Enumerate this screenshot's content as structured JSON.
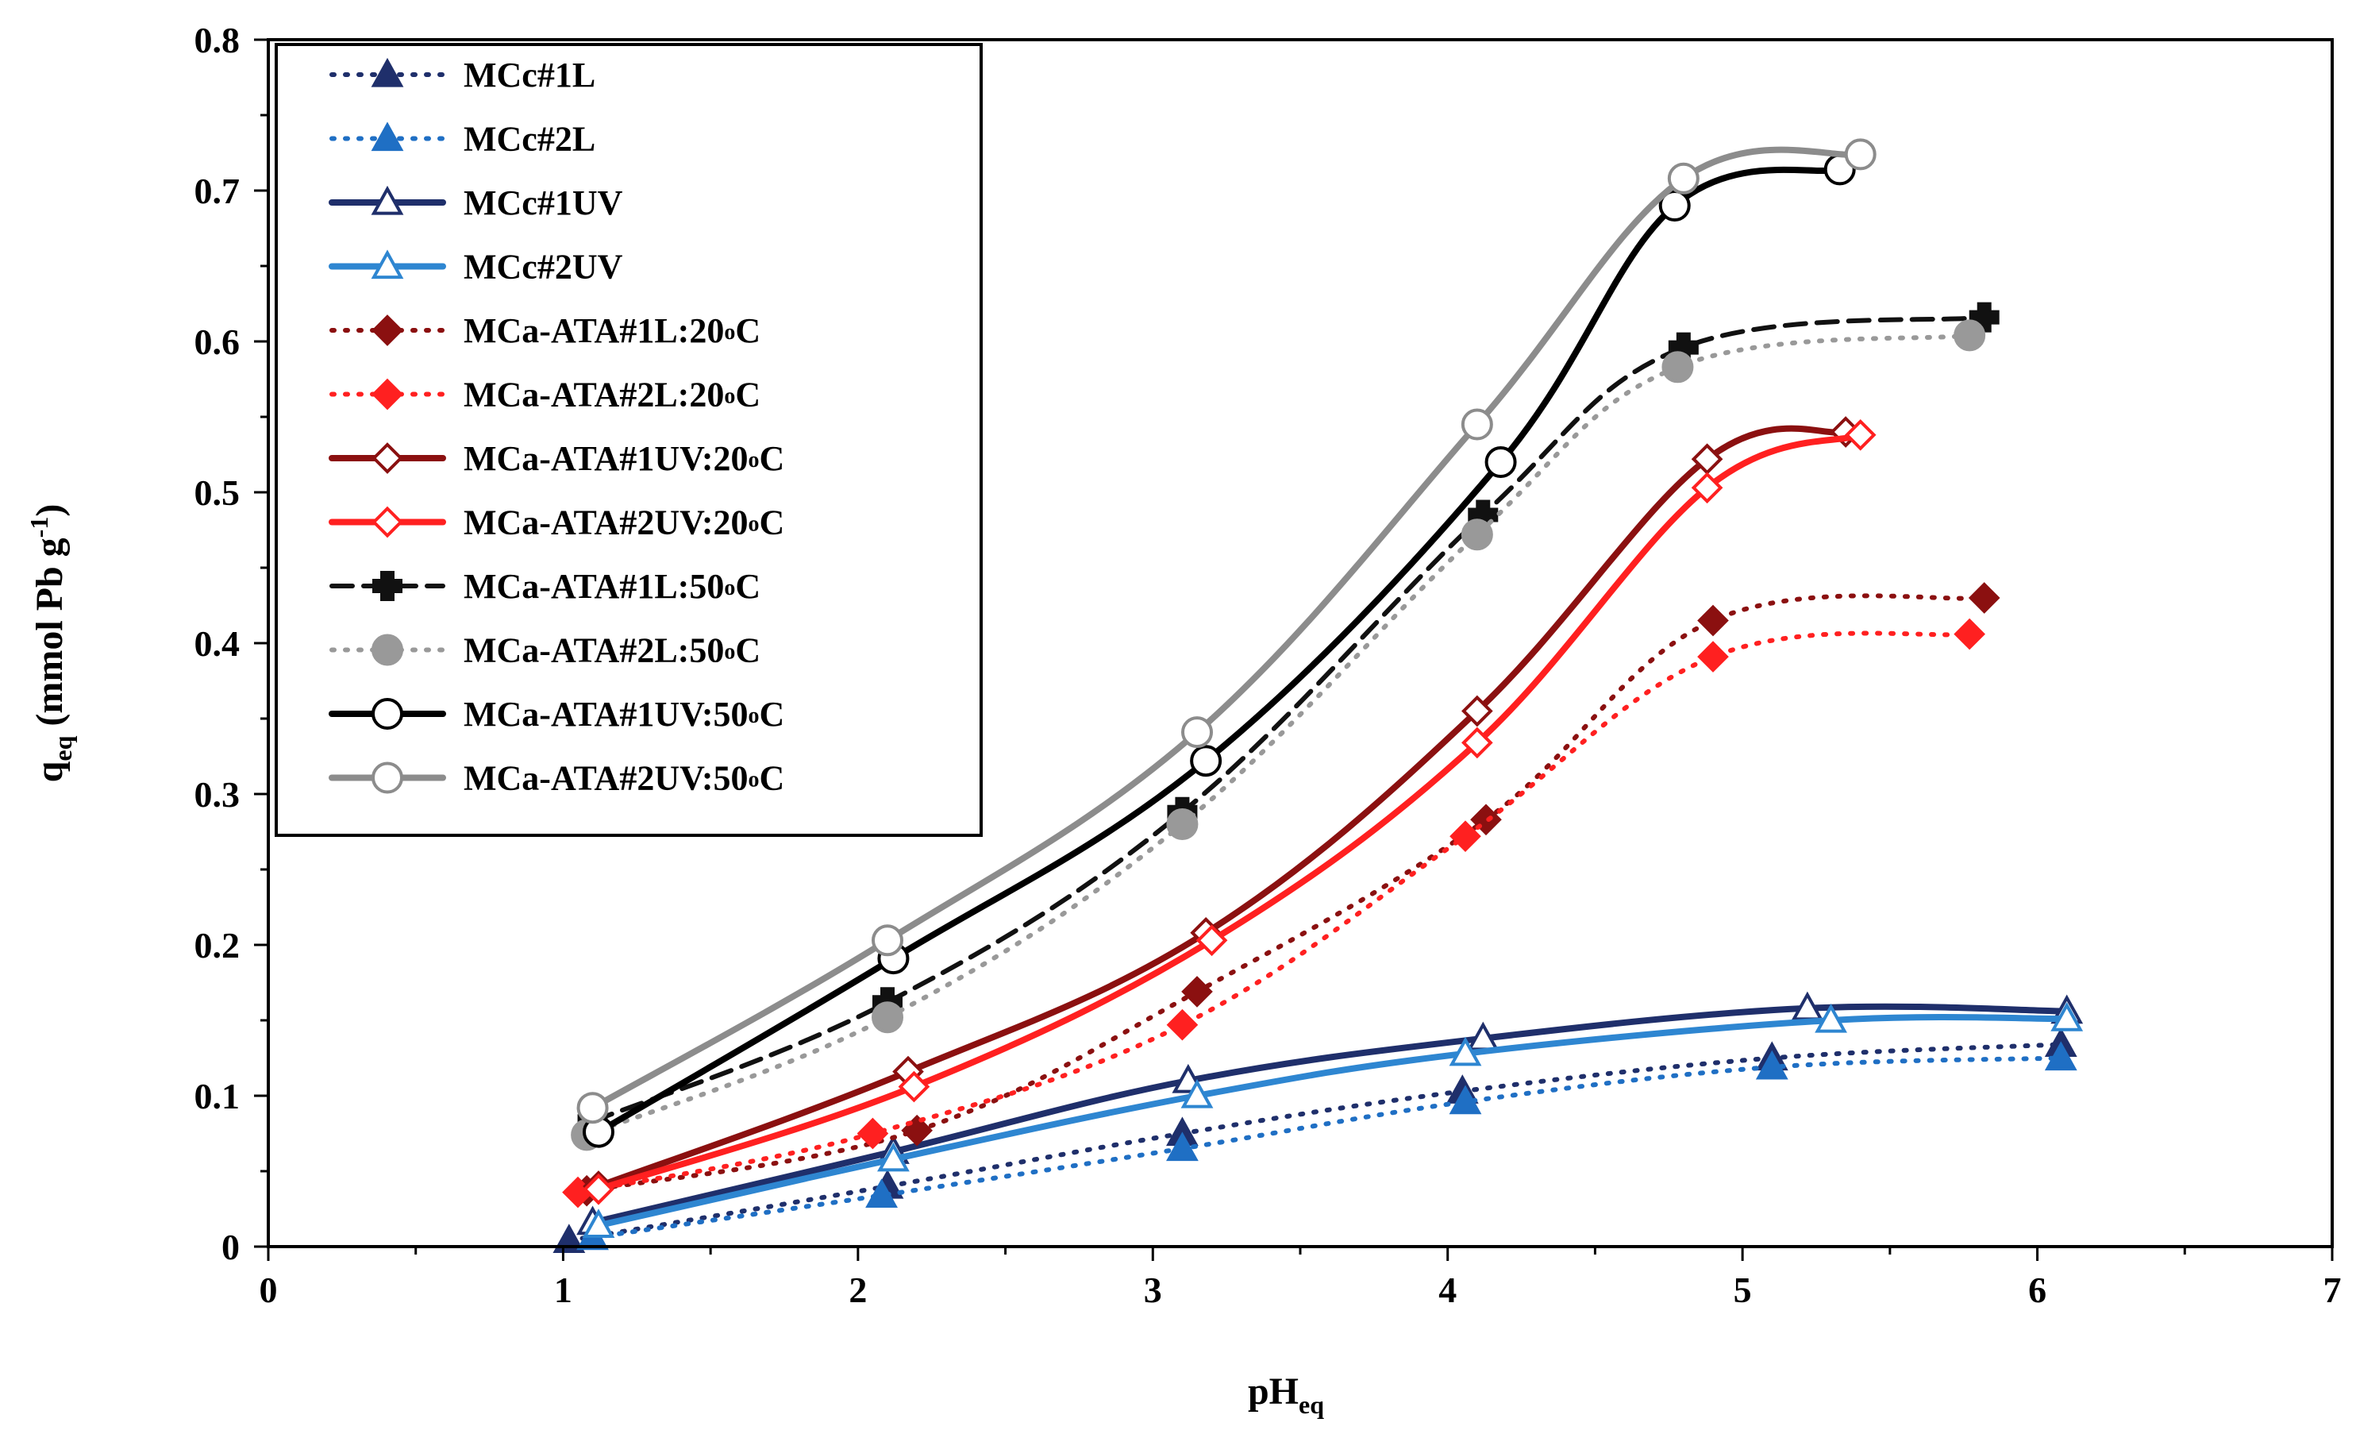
{
  "chart_data": {
    "type": "line",
    "title": "",
    "xlabel": "pH",
    "xlabel_sub": "eq",
    "ylabel": {
      "main": "q",
      "sub": "eq",
      "units_pre": " (mmol Pb g",
      "units_sup": "-1",
      "units_post": ")"
    },
    "xlim": [
      0,
      7
    ],
    "ylim": [
      0,
      0.8
    ],
    "x_ticks": [
      "0",
      "1",
      "2",
      "3",
      "4",
      "5",
      "6",
      "7"
    ],
    "y_ticks": [
      "0",
      "0.1",
      "0.2",
      "0.3",
      "0.4",
      "0.5",
      "0.6",
      "0.7",
      "0.8"
    ],
    "grid": false,
    "legend_position": "top-left",
    "series": [
      {
        "name": "MCc#1L",
        "label": {
          "main": "MCc#1L"
        },
        "color": "#1f2f6b",
        "line": "dotted",
        "marker": "triangle",
        "fill": true,
        "x": [
          1.02,
          2.1,
          3.1,
          4.05,
          5.1,
          6.08
        ],
        "y": [
          0.004,
          0.04,
          0.075,
          0.103,
          0.125,
          0.134
        ]
      },
      {
        "name": "MCc#2L",
        "label": {
          "main": "MCc#2L"
        },
        "color": "#1f6fc4",
        "line": "dotted",
        "marker": "triangle",
        "fill": true,
        "x": [
          1.1,
          2.08,
          3.1,
          4.06,
          5.1,
          6.08
        ],
        "y": [
          0.006,
          0.034,
          0.065,
          0.096,
          0.119,
          0.125
        ]
      },
      {
        "name": "MCc#1UV",
        "label": {
          "main": "MCc#1UV"
        },
        "color": "#1f2f6b",
        "line": "solid",
        "marker": "triangle",
        "fill": false,
        "x": [
          1.1,
          2.12,
          3.12,
          4.12,
          5.22,
          6.1
        ],
        "y": [
          0.016,
          0.063,
          0.11,
          0.138,
          0.158,
          0.156
        ]
      },
      {
        "name": "MCc#2UV",
        "label": {
          "main": "MCc#2UV"
        },
        "color": "#2e86d1",
        "line": "solid",
        "marker": "triangle",
        "fill": false,
        "x": [
          1.12,
          2.12,
          3.15,
          4.06,
          5.3,
          6.1
        ],
        "y": [
          0.014,
          0.058,
          0.1,
          0.128,
          0.15,
          0.151
        ]
      },
      {
        "name": "MCa-ATA#1L:20°C",
        "label": {
          "main": "MCa-ATA#1L:20",
          "sup": "o",
          "tail": "C"
        },
        "color": "#8b1010",
        "line": "dotted",
        "marker": "diamond",
        "fill": true,
        "x": [
          1.08,
          2.2,
          3.15,
          4.13,
          4.9,
          5.82
        ],
        "y": [
          0.037,
          0.077,
          0.169,
          0.283,
          0.415,
          0.43
        ]
      },
      {
        "name": "MCa-ATA#2L:20°C",
        "label": {
          "main": "MCa-ATA#2L:20",
          "sup": "o",
          "tail": "C"
        },
        "color": "#ff2020",
        "line": "dotted",
        "marker": "diamond",
        "fill": true,
        "x": [
          1.05,
          2.05,
          3.1,
          4.06,
          4.9,
          5.77
        ],
        "y": [
          0.036,
          0.075,
          0.147,
          0.272,
          0.391,
          0.406
        ]
      },
      {
        "name": "MCa-ATA#1UV:20°C",
        "label": {
          "main": "MCa-ATA#1UV:20",
          "sup": "o",
          "tail": "C"
        },
        "color": "#8b1010",
        "line": "solid",
        "marker": "diamond",
        "fill": false,
        "x": [
          1.12,
          2.17,
          3.18,
          4.1,
          4.88,
          5.35
        ],
        "y": [
          0.04,
          0.116,
          0.208,
          0.355,
          0.522,
          0.54
        ]
      },
      {
        "name": "MCa-ATA#2UV:20°C",
        "label": {
          "main": "MCa-ATA#2UV:20",
          "sup": "o",
          "tail": "C"
        },
        "color": "#ff2020",
        "line": "solid",
        "marker": "diamond",
        "fill": false,
        "x": [
          1.12,
          2.19,
          3.2,
          4.1,
          4.88,
          5.4
        ],
        "y": [
          0.038,
          0.106,
          0.203,
          0.334,
          0.503,
          0.538
        ]
      },
      {
        "name": "MCa-ATA#1L:50°C",
        "label": {
          "main": "MCa-ATA#1L:50",
          "sup": "o",
          "tail": "C"
        },
        "color": "#111111",
        "line": "dashed",
        "marker": "cross",
        "fill": true,
        "x": [
          1.1,
          2.1,
          3.1,
          4.12,
          4.8,
          5.82
        ],
        "y": [
          0.083,
          0.162,
          0.288,
          0.485,
          0.596,
          0.616
        ]
      },
      {
        "name": "MCa-ATA#2L:50°C",
        "label": {
          "main": "MCa-ATA#2L:50",
          "sup": "o",
          "tail": "C"
        },
        "color": "#999999",
        "line": "dotted",
        "marker": "circle",
        "fill": true,
        "x": [
          1.08,
          2.1,
          3.1,
          4.1,
          4.78,
          5.77
        ],
        "y": [
          0.074,
          0.152,
          0.28,
          0.472,
          0.583,
          0.604
        ]
      },
      {
        "name": "MCa-ATA#1UV:50°C",
        "label": {
          "main": "MCa-ATA#1UV:50",
          "sup": "o",
          "tail": "C"
        },
        "color": "#000000",
        "line": "solid",
        "marker": "circle",
        "fill": false,
        "x": [
          1.12,
          2.12,
          3.18,
          4.18,
          4.77,
          5.33
        ],
        "y": [
          0.076,
          0.191,
          0.322,
          0.52,
          0.69,
          0.714
        ]
      },
      {
        "name": "MCa-ATA#2UV:50°C",
        "label": {
          "main": "MCa-ATA#2UV:50",
          "sup": "o",
          "tail": "C"
        },
        "color": "#8c8c8c",
        "line": "solid",
        "marker": "circle",
        "fill": false,
        "x": [
          1.1,
          2.1,
          3.15,
          4.1,
          4.8,
          5.4
        ],
        "y": [
          0.092,
          0.203,
          0.341,
          0.545,
          0.708,
          0.724
        ]
      }
    ]
  }
}
